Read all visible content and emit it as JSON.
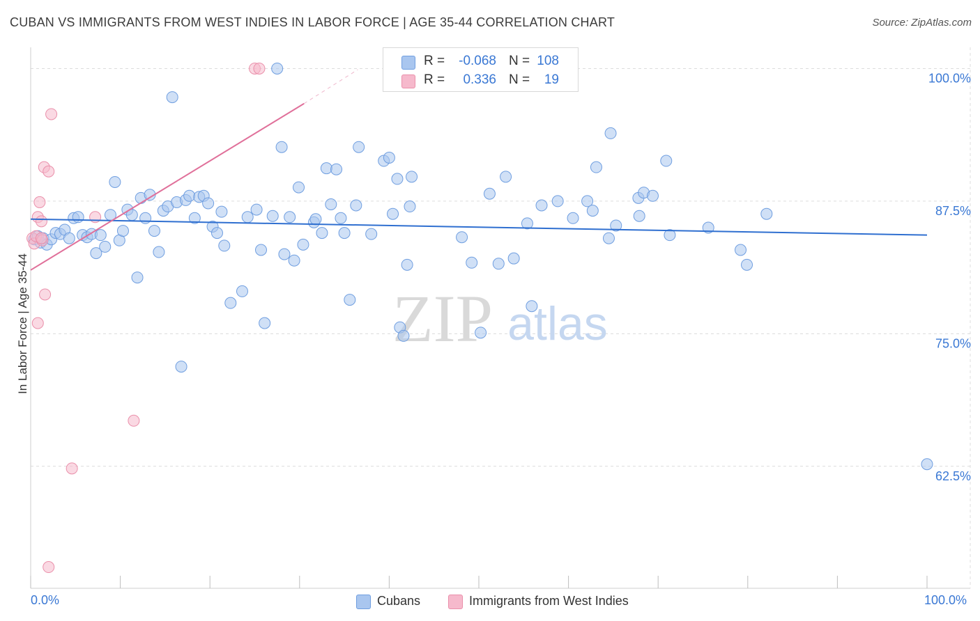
{
  "title": "CUBAN VS IMMIGRANTS FROM WEST INDIES IN LABOR FORCE | AGE 35-44 CORRELATION CHART",
  "source": "Source: ZipAtlas.com",
  "watermark": {
    "zip": "ZIP",
    "atlas": "atlas"
  },
  "colors": {
    "blue_fill": "#a9c6ef",
    "blue_stroke": "#6f9ee0",
    "blue_line": "#2f6fd0",
    "pink_fill": "#f6b9cc",
    "pink_stroke": "#ea8faa",
    "pink_line": "#e0709a",
    "tick_text": "#3a78d4",
    "grid": "#dcdcdc"
  },
  "legend": {
    "rows": [
      {
        "r_label": "R =",
        "r_value": "-0.068",
        "n_label": "N =",
        "n_value": "108"
      },
      {
        "r_label": "R =",
        "r_value": "0.336",
        "n_label": "N =",
        "n_value": "19"
      }
    ]
  },
  "series_labels": {
    "cubans": "Cubans",
    "west_indies": "Immigrants from West Indies"
  },
  "chart_data": {
    "type": "scatter",
    "title": "CUBAN VS IMMIGRANTS FROM WEST INDIES IN LABOR FORCE | AGE 35-44 CORRELATION CHART",
    "xlabel": "",
    "ylabel": "In Labor Force | Age 35-44",
    "xlim": [
      0,
      100
    ],
    "ylim": [
      51,
      102
    ],
    "x_tick_labels": [
      "0.0%",
      "100.0%"
    ],
    "y_ticks": [
      62.5,
      75.0,
      87.5,
      100.0
    ],
    "y_tick_labels": [
      "62.5%",
      "75.0%",
      "87.5%",
      "100.0%"
    ],
    "grid": true,
    "legend_position": "top-center",
    "series": [
      {
        "name": "Cubans",
        "R": -0.068,
        "N": 108,
        "trend": {
          "x": [
            0,
            100
          ],
          "y": [
            85.8,
            84.3
          ]
        },
        "points": [
          [
            0.4,
            83.9
          ],
          [
            0.8,
            84.2
          ],
          [
            1.1,
            83.6
          ],
          [
            1.4,
            84.0
          ],
          [
            1.8,
            83.4
          ],
          [
            2.3,
            83.9
          ],
          [
            2.8,
            84.5
          ],
          [
            3.3,
            84.4
          ],
          [
            3.8,
            84.8
          ],
          [
            4.3,
            84.0
          ],
          [
            4.8,
            85.9
          ],
          [
            5.3,
            86.0
          ],
          [
            5.8,
            84.3
          ],
          [
            6.3,
            84.1
          ],
          [
            6.8,
            84.4
          ],
          [
            7.3,
            82.6
          ],
          [
            7.8,
            84.3
          ],
          [
            8.3,
            83.2
          ],
          [
            8.9,
            86.2
          ],
          [
            9.4,
            89.3
          ],
          [
            9.9,
            83.8
          ],
          [
            10.3,
            84.7
          ],
          [
            10.8,
            86.7
          ],
          [
            11.3,
            86.2
          ],
          [
            11.9,
            80.3
          ],
          [
            12.3,
            87.8
          ],
          [
            12.8,
            85.9
          ],
          [
            13.3,
            88.1
          ],
          [
            13.8,
            84.7
          ],
          [
            14.3,
            82.7
          ],
          [
            14.8,
            86.6
          ],
          [
            15.3,
            87.0
          ],
          [
            15.8,
            97.3
          ],
          [
            16.3,
            87.4
          ],
          [
            16.8,
            71.9
          ],
          [
            17.3,
            87.6
          ],
          [
            17.7,
            88.0
          ],
          [
            18.3,
            85.9
          ],
          [
            18.8,
            87.9
          ],
          [
            19.3,
            88.0
          ],
          [
            19.8,
            87.3
          ],
          [
            20.3,
            85.1
          ],
          [
            20.8,
            84.5
          ],
          [
            21.3,
            86.5
          ],
          [
            21.6,
            83.3
          ],
          [
            22.3,
            77.9
          ],
          [
            23.6,
            79.0
          ],
          [
            24.2,
            86.0
          ],
          [
            25.2,
            86.7
          ],
          [
            25.7,
            82.9
          ],
          [
            26.1,
            76.0
          ],
          [
            27.0,
            86.1
          ],
          [
            27.5,
            100.0
          ],
          [
            28.0,
            92.6
          ],
          [
            28.3,
            82.5
          ],
          [
            28.9,
            86.0
          ],
          [
            29.4,
            81.9
          ],
          [
            29.9,
            88.8
          ],
          [
            30.4,
            83.4
          ],
          [
            31.6,
            85.5
          ],
          [
            31.8,
            85.8
          ],
          [
            32.5,
            84.5
          ],
          [
            33.0,
            90.6
          ],
          [
            33.5,
            87.2
          ],
          [
            34.1,
            90.5
          ],
          [
            34.6,
            85.9
          ],
          [
            35.0,
            84.5
          ],
          [
            35.6,
            78.2
          ],
          [
            36.3,
            87.1
          ],
          [
            36.6,
            92.6
          ],
          [
            38.0,
            84.4
          ],
          [
            39.4,
            91.3
          ],
          [
            40.0,
            91.6
          ],
          [
            40.4,
            86.3
          ],
          [
            40.9,
            89.6
          ],
          [
            41.2,
            75.6
          ],
          [
            41.6,
            74.8
          ],
          [
            42.0,
            81.5
          ],
          [
            42.3,
            87.0
          ],
          [
            42.5,
            89.8
          ],
          [
            48.1,
            84.1
          ],
          [
            49.2,
            81.7
          ],
          [
            50.2,
            75.1
          ],
          [
            51.2,
            88.2
          ],
          [
            52.2,
            81.6
          ],
          [
            53.0,
            89.8
          ],
          [
            53.9,
            82.1
          ],
          [
            55.4,
            85.4
          ],
          [
            55.9,
            77.6
          ],
          [
            57.0,
            87.1
          ],
          [
            58.8,
            87.5
          ],
          [
            60.5,
            85.9
          ],
          [
            62.1,
            87.5
          ],
          [
            62.7,
            86.6
          ],
          [
            63.1,
            90.7
          ],
          [
            64.5,
            84.0
          ],
          [
            64.7,
            93.9
          ],
          [
            65.3,
            85.2
          ],
          [
            67.8,
            87.8
          ],
          [
            67.9,
            86.1
          ],
          [
            68.4,
            88.3
          ],
          [
            69.4,
            88.0
          ],
          [
            70.9,
            91.3
          ],
          [
            71.3,
            84.3
          ],
          [
            75.6,
            85.0
          ],
          [
            79.2,
            82.9
          ],
          [
            79.9,
            81.5
          ],
          [
            82.1,
            86.3
          ],
          [
            100.0,
            62.7
          ]
        ]
      },
      {
        "name": "Immigrants from West Indies",
        "R": 0.336,
        "N": 19,
        "trend": {
          "x": [
            0,
            30.5
          ],
          "y": [
            81.0,
            96.7
          ]
        },
        "trend_extension": {
          "x": [
            30.5,
            36.5
          ],
          "y": [
            96.7,
            99.9
          ]
        },
        "points": [
          [
            0.2,
            84.0
          ],
          [
            0.4,
            83.5
          ],
          [
            0.6,
            84.2
          ],
          [
            0.8,
            86.0
          ],
          [
            0.8,
            76.0
          ],
          [
            1.0,
            87.4
          ],
          [
            1.2,
            85.6
          ],
          [
            1.3,
            83.8
          ],
          [
            1.5,
            90.7
          ],
          [
            1.6,
            78.7
          ],
          [
            2.0,
            90.3
          ],
          [
            2.3,
            95.7
          ],
          [
            4.6,
            62.3
          ],
          [
            7.2,
            86.0
          ],
          [
            11.5,
            66.8
          ],
          [
            25.0,
            100.0
          ],
          [
            25.5,
            100.0
          ],
          [
            2.0,
            53.0
          ],
          [
            1.2,
            84.0
          ]
        ]
      }
    ]
  }
}
